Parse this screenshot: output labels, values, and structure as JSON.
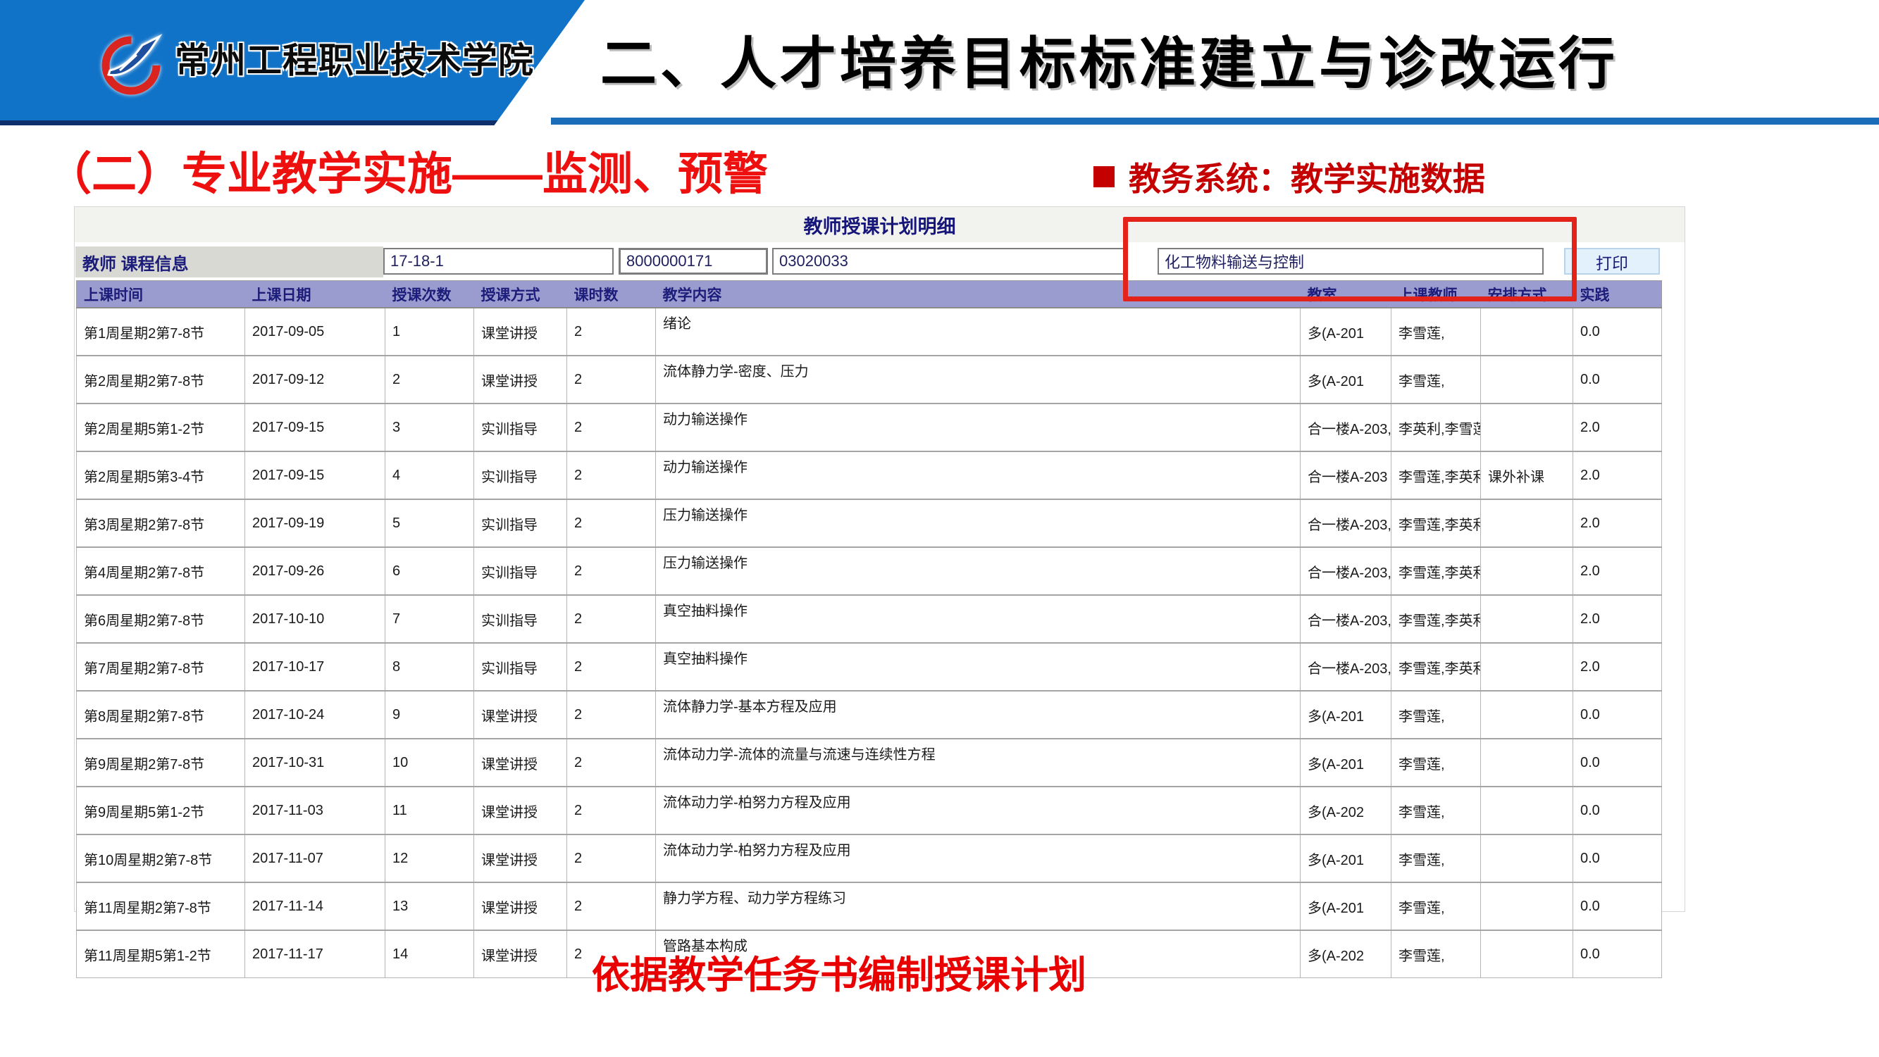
{
  "banner": {
    "school_name": "常州工程职业技术学院",
    "logo": "school-logo-swoosh"
  },
  "header": {
    "title": "二、人才培养目标标准建立与诊改运行"
  },
  "section": {
    "left_heading": "（二）专业教学实施——监测、预警",
    "right_bullet": "教务系统：教学实施数据"
  },
  "system": {
    "title": "教师授课计划明细",
    "form": {
      "label": "教师 课程信息",
      "term": "17-18-1",
      "teacher_id": "8000000171",
      "course_code": "03020033",
      "course_name": "化工物料输送与控制",
      "print_label": "打印"
    },
    "table": {
      "columns": [
        "上课时间",
        "上课日期",
        "授课次数",
        "授课方式",
        "课时数",
        "教学内容",
        "教室",
        "上课教师",
        "安排方式",
        "实践"
      ],
      "rows": [
        [
          "第1周星期2第7-8节",
          "2017-09-05",
          "1",
          "课堂讲授",
          "2",
          "绪论",
          "多(A-201",
          "李雪莲,",
          "",
          "0.0"
        ],
        [
          "第2周星期2第7-8节",
          "2017-09-12",
          "2",
          "课堂讲授",
          "2",
          "流体静力学-密度、压力",
          "多(A-201",
          "李雪莲,",
          "",
          "0.0"
        ],
        [
          "第2周星期5第1-2节",
          "2017-09-15",
          "3",
          "实训指导",
          "2",
          "动力输送操作",
          "合一楼A-203,",
          "李英利,李雪莲,",
          "",
          "2.0"
        ],
        [
          "第2周星期5第3-4节",
          "2017-09-15",
          "4",
          "实训指导",
          "2",
          "动力输送操作",
          "合一楼A-203",
          "李雪莲,李英利,",
          "课外补课",
          "2.0"
        ],
        [
          "第3周星期2第7-8节",
          "2017-09-19",
          "5",
          "实训指导",
          "2",
          "压力输送操作",
          "合一楼A-203,",
          "李雪莲,李英利,",
          "",
          "2.0"
        ],
        [
          "第4周星期2第7-8节",
          "2017-09-26",
          "6",
          "实训指导",
          "2",
          "压力输送操作",
          "合一楼A-203,",
          "李雪莲,李英利,",
          "",
          "2.0"
        ],
        [
          "第6周星期2第7-8节",
          "2017-10-10",
          "7",
          "实训指导",
          "2",
          "真空抽料操作",
          "合一楼A-203,",
          "李雪莲,李英利,",
          "",
          "2.0"
        ],
        [
          "第7周星期2第7-8节",
          "2017-10-17",
          "8",
          "实训指导",
          "2",
          "真空抽料操作",
          "合一楼A-203,",
          "李雪莲,李英利,",
          "",
          "2.0"
        ],
        [
          "第8周星期2第7-8节",
          "2017-10-24",
          "9",
          "课堂讲授",
          "2",
          "流体静力学-基本方程及应用",
          "多(A-201",
          "李雪莲,",
          "",
          "0.0"
        ],
        [
          "第9周星期2第7-8节",
          "2017-10-31",
          "10",
          "课堂讲授",
          "2",
          "流体动力学-流体的流量与流速与连续性方程",
          "多(A-201",
          "李雪莲,",
          "",
          "0.0"
        ],
        [
          "第9周星期5第1-2节",
          "2017-11-03",
          "11",
          "课堂讲授",
          "2",
          "流体动力学-柏努力方程及应用",
          "多(A-202",
          "李雪莲,",
          "",
          "0.0"
        ],
        [
          "第10周星期2第7-8节",
          "2017-11-07",
          "12",
          "课堂讲授",
          "2",
          "流体动力学-柏努力方程及应用",
          "多(A-201",
          "李雪莲,",
          "",
          "0.0"
        ],
        [
          "第11周星期2第7-8节",
          "2017-11-14",
          "13",
          "课堂讲授",
          "2",
          "静力学方程、动力学方程练习",
          "多(A-201",
          "李雪莲,",
          "",
          "0.0"
        ],
        [
          "第11周星期5第1-2节",
          "2017-11-17",
          "14",
          "课堂讲授",
          "2",
          "管路基本构成",
          "多(A-202",
          "李雪莲,",
          "",
          "0.0"
        ]
      ]
    }
  },
  "caption": "依据教学任务书编制授课计划",
  "colors": {
    "banner_blue": "#1173c8",
    "underline_blue": "#1a6db8",
    "heading_red": "#ee0f0f",
    "bullet_red": "#c40000",
    "table_header_purple": "#9a9bce",
    "annotation_red": "#e3231a",
    "caption_red": "#e90000"
  }
}
